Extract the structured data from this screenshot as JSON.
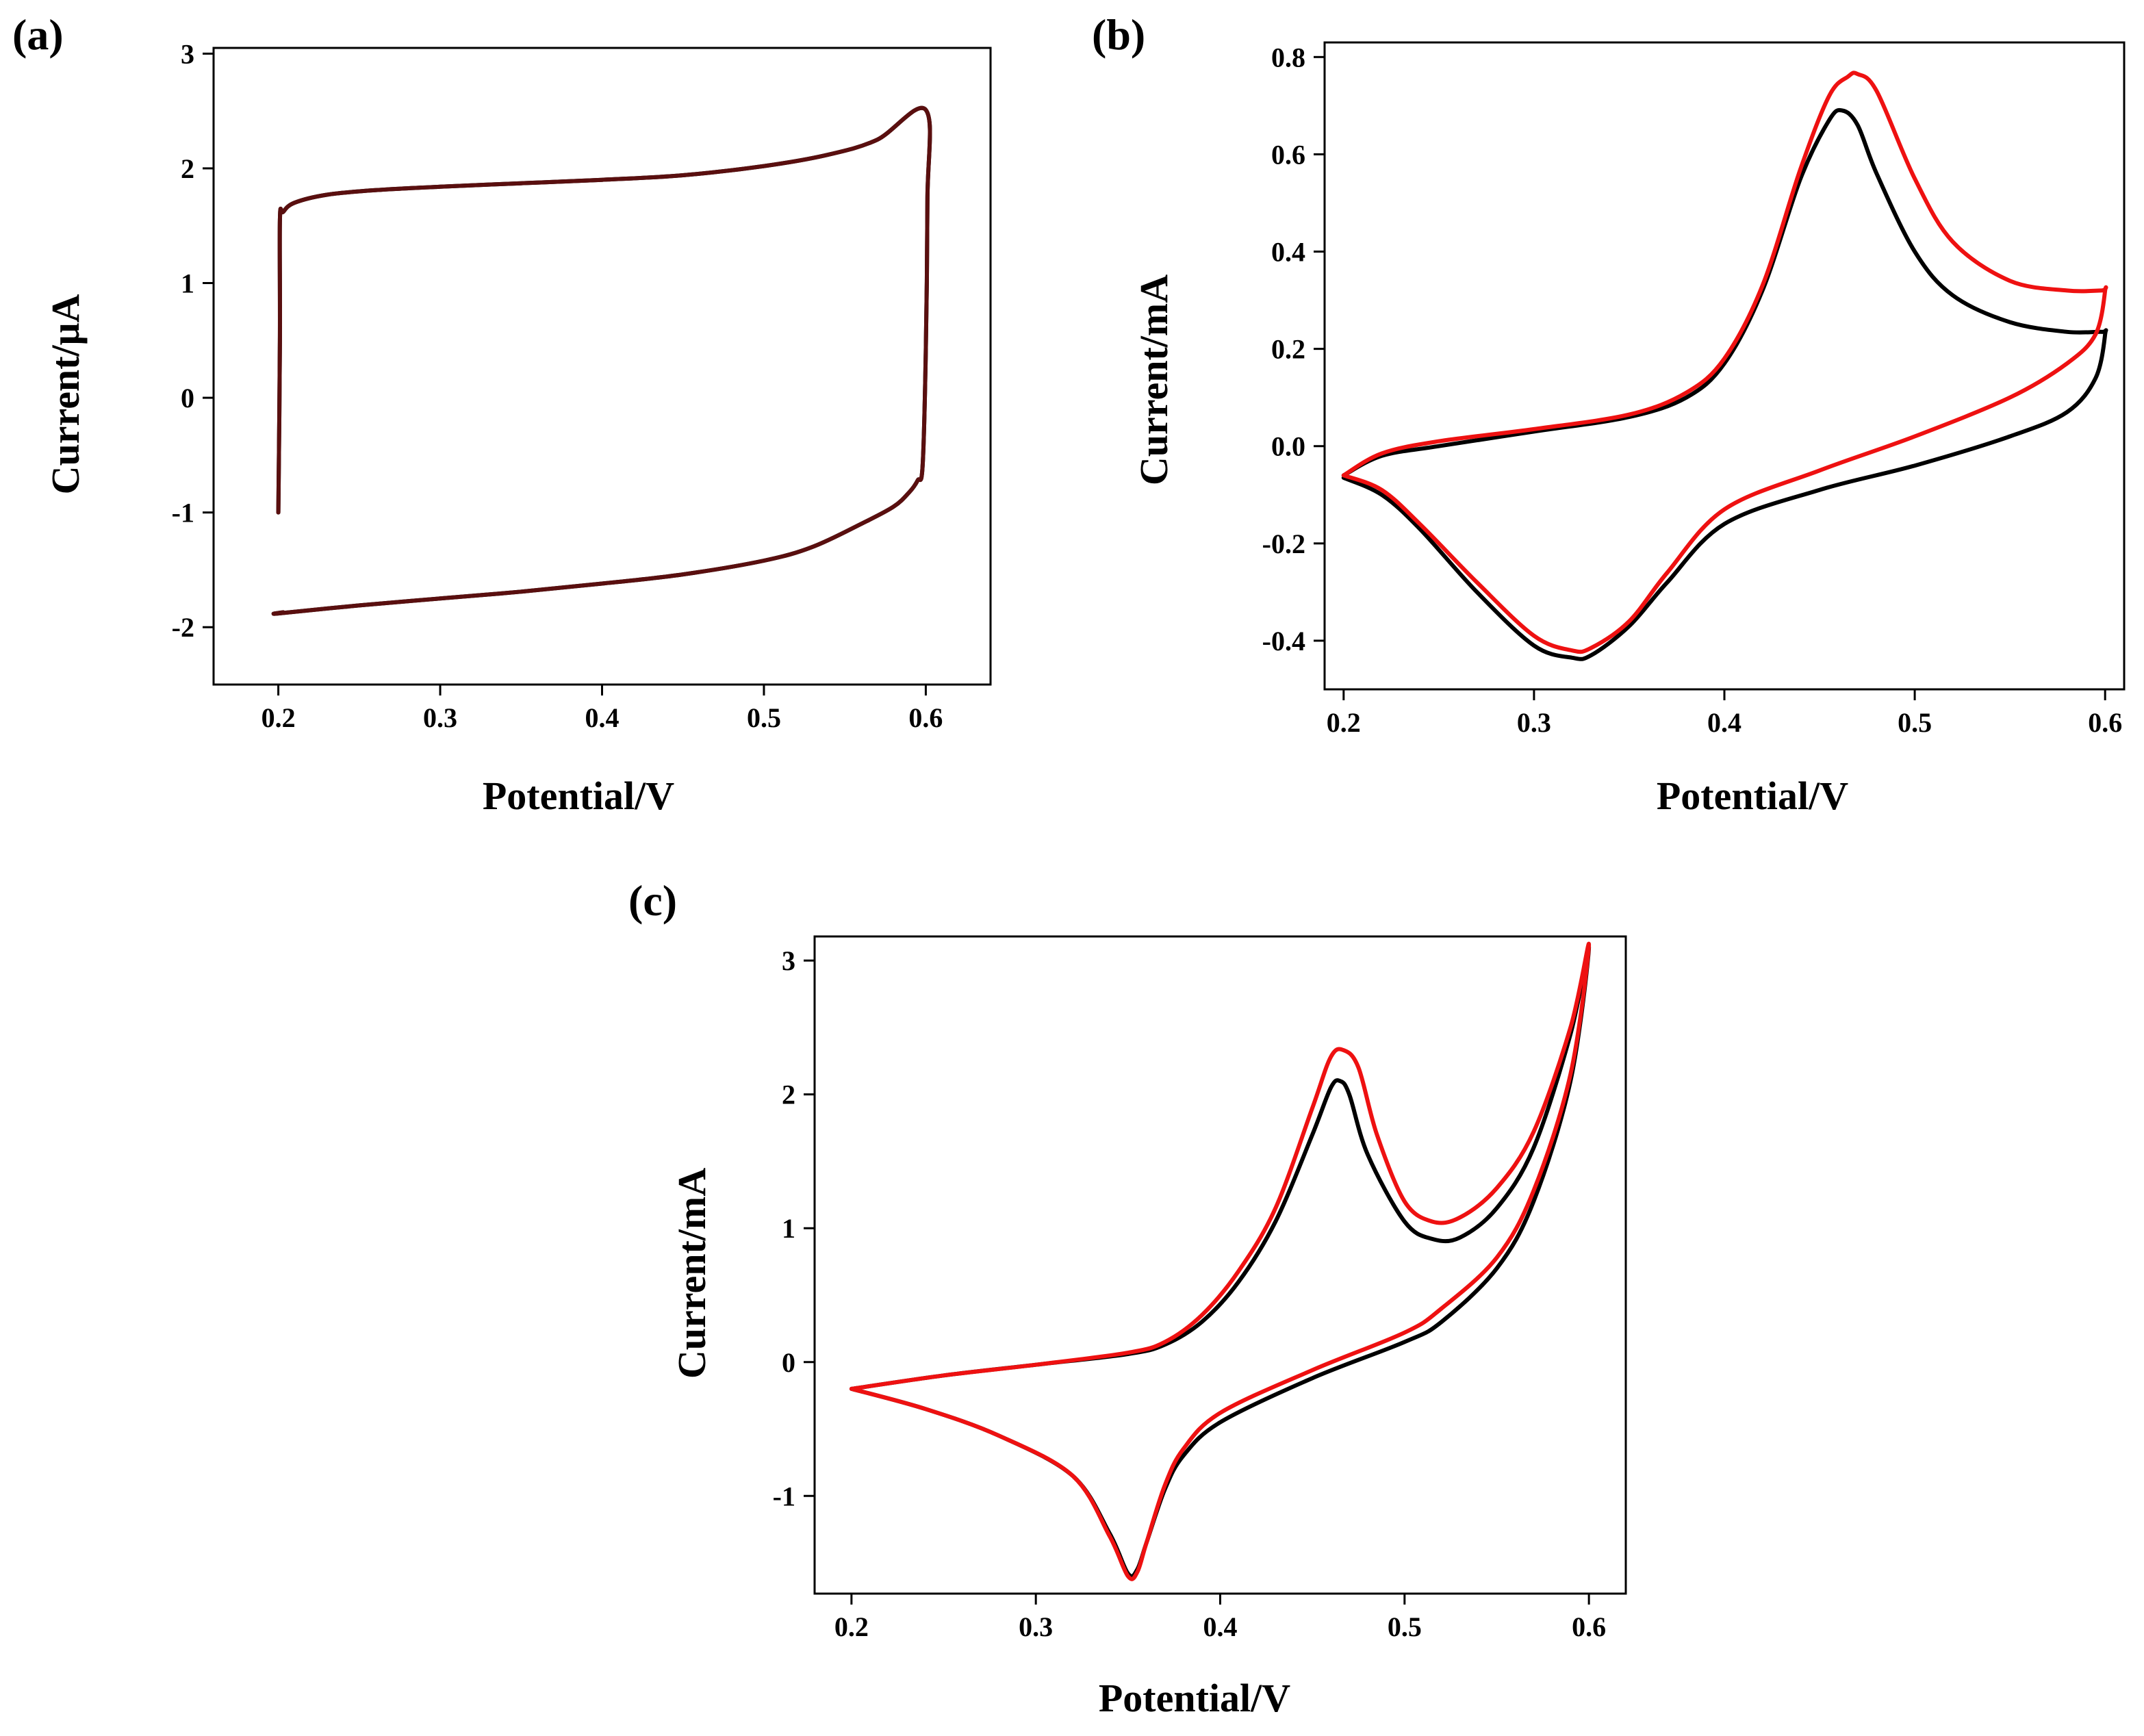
{
  "colors": {
    "black": "#000000",
    "red": "#ee1111",
    "dark_red": "#5a0f0f"
  },
  "chart_data": [
    {
      "id": "a",
      "panel_label": "(a)",
      "type": "line",
      "xlabel": "Potential/V",
      "ylabel": "Current/μA",
      "xlim": [
        0.16,
        0.64
      ],
      "ylim": [
        -2.5,
        3.05
      ],
      "xticks": [
        0.2,
        0.3,
        0.4,
        0.5,
        0.6
      ],
      "xtick_labels": [
        "0.2",
        "0.3",
        "0.4",
        "0.5",
        "0.6"
      ],
      "yticks": [
        -2,
        -1,
        0,
        1,
        2,
        3
      ],
      "ytick_labels": [
        "-2",
        "-1",
        "0",
        "1",
        "2",
        "3"
      ],
      "series": [
        {
          "name": "black",
          "color": "#000000",
          "x": [
            0.2,
            0.201,
            0.201,
            0.203,
            0.21,
            0.23,
            0.26,
            0.3,
            0.35,
            0.4,
            0.45,
            0.5,
            0.54,
            0.57,
            0.6,
            0.601,
            0.6,
            0.598,
            0.595,
            0.59,
            0.58,
            0.56,
            0.53,
            0.5,
            0.45,
            0.4,
            0.35,
            0.3,
            0.25,
            0.2,
            0.203
          ],
          "y": [
            -1.0,
            0.5,
            1.55,
            1.62,
            1.7,
            1.77,
            1.81,
            1.84,
            1.87,
            1.9,
            1.94,
            2.02,
            2.12,
            2.25,
            2.51,
            1.72,
            0.4,
            -0.6,
            -0.72,
            -0.82,
            -0.95,
            -1.1,
            -1.3,
            -1.42,
            -1.54,
            -1.62,
            -1.69,
            -1.75,
            -1.81,
            -1.88,
            -1.87
          ]
        },
        {
          "name": "red",
          "color": "#5a0f0f",
          "x": [
            0.2,
            0.201,
            0.201,
            0.203,
            0.21,
            0.23,
            0.26,
            0.3,
            0.35,
            0.4,
            0.45,
            0.5,
            0.54,
            0.57,
            0.6,
            0.601,
            0.6,
            0.598,
            0.595,
            0.59,
            0.58,
            0.56,
            0.53,
            0.5,
            0.45,
            0.4,
            0.35,
            0.3,
            0.25,
            0.2,
            0.203
          ],
          "y": [
            -1.0,
            0.5,
            1.55,
            1.62,
            1.7,
            1.77,
            1.81,
            1.84,
            1.87,
            1.9,
            1.94,
            2.02,
            2.12,
            2.25,
            2.51,
            1.72,
            0.4,
            -0.6,
            -0.72,
            -0.82,
            -0.95,
            -1.1,
            -1.3,
            -1.42,
            -1.54,
            -1.62,
            -1.69,
            -1.75,
            -1.81,
            -1.88,
            -1.87
          ]
        }
      ]
    },
    {
      "id": "b",
      "panel_label": "(b)",
      "type": "line",
      "xlabel": "Potential/V",
      "ylabel": "Current/mA",
      "xlim": [
        0.19,
        0.61
      ],
      "ylim": [
        -0.5,
        0.83
      ],
      "xticks": [
        0.2,
        0.3,
        0.4,
        0.5,
        0.6
      ],
      "xtick_labels": [
        "0.2",
        "0.3",
        "0.4",
        "0.5",
        "0.6"
      ],
      "yticks": [
        -0.4,
        -0.2,
        0.0,
        0.2,
        0.4,
        0.6,
        0.8
      ],
      "ytick_labels": [
        "-0.4",
        "-0.2",
        "0.0",
        "0.2",
        "0.4",
        "0.6",
        "0.8"
      ],
      "series": [
        {
          "name": "black",
          "color": "#000000",
          "x": [
            0.2,
            0.22,
            0.25,
            0.3,
            0.35,
            0.38,
            0.4,
            0.42,
            0.44,
            0.455,
            0.462,
            0.47,
            0.48,
            0.5,
            0.52,
            0.55,
            0.58,
            0.598,
            0.6,
            0.595,
            0.58,
            0.55,
            0.5,
            0.45,
            0.4,
            0.37,
            0.35,
            0.33,
            0.32,
            0.3,
            0.27,
            0.24,
            0.22,
            0.2
          ],
          "y": [
            -0.06,
            -0.02,
            0.0,
            0.03,
            0.06,
            0.1,
            0.17,
            0.32,
            0.55,
            0.67,
            0.69,
            0.66,
            0.56,
            0.4,
            0.31,
            0.255,
            0.235,
            0.235,
            0.23,
            0.14,
            0.07,
            0.02,
            -0.04,
            -0.09,
            -0.16,
            -0.28,
            -0.37,
            -0.43,
            -0.435,
            -0.41,
            -0.3,
            -0.17,
            -0.1,
            -0.065
          ]
        },
        {
          "name": "red",
          "color": "#ee1111",
          "x": [
            0.2,
            0.22,
            0.25,
            0.3,
            0.35,
            0.38,
            0.4,
            0.42,
            0.44,
            0.455,
            0.465,
            0.47,
            0.48,
            0.5,
            0.52,
            0.55,
            0.58,
            0.598,
            0.6,
            0.595,
            0.58,
            0.55,
            0.5,
            0.45,
            0.4,
            0.37,
            0.35,
            0.33,
            0.32,
            0.3,
            0.27,
            0.24,
            0.22,
            0.2
          ],
          "y": [
            -0.06,
            -0.015,
            0.01,
            0.035,
            0.065,
            0.11,
            0.18,
            0.33,
            0.57,
            0.72,
            0.76,
            0.765,
            0.73,
            0.55,
            0.42,
            0.34,
            0.32,
            0.32,
            0.32,
            0.23,
            0.17,
            0.1,
            0.02,
            -0.05,
            -0.13,
            -0.26,
            -0.36,
            -0.415,
            -0.42,
            -0.39,
            -0.28,
            -0.16,
            -0.09,
            -0.06
          ]
        }
      ]
    },
    {
      "id": "c",
      "panel_label": "(c)",
      "type": "line",
      "xlabel": "Potential/V",
      "ylabel": "Current/mA",
      "xlim": [
        0.18,
        0.62
      ],
      "ylim": [
        -1.73,
        3.18
      ],
      "xticks": [
        0.2,
        0.3,
        0.4,
        0.5,
        0.6
      ],
      "xtick_labels": [
        "0.2",
        "0.3",
        "0.4",
        "0.5",
        "0.6"
      ],
      "yticks": [
        -1,
        0,
        1,
        2,
        3
      ],
      "ytick_labels": [
        "-1",
        "0",
        "1",
        "2",
        "3"
      ],
      "series": [
        {
          "name": "black",
          "color": "#000000",
          "x": [
            0.2,
            0.25,
            0.3,
            0.35,
            0.37,
            0.39,
            0.41,
            0.43,
            0.45,
            0.46,
            0.465,
            0.47,
            0.48,
            0.5,
            0.515,
            0.53,
            0.55,
            0.57,
            0.59,
            0.6,
            0.59,
            0.57,
            0.55,
            0.52,
            0.5,
            0.45,
            0.4,
            0.38,
            0.37,
            0.36,
            0.355,
            0.35,
            0.34,
            0.32,
            0.28,
            0.24,
            0.2
          ],
          "y": [
            -0.2,
            -0.1,
            -0.02,
            0.06,
            0.13,
            0.3,
            0.6,
            1.05,
            1.7,
            2.05,
            2.1,
            2.0,
            1.55,
            1.05,
            0.92,
            0.93,
            1.15,
            1.6,
            2.45,
            3.1,
            2.1,
            1.2,
            0.7,
            0.3,
            0.15,
            -0.12,
            -0.45,
            -0.7,
            -0.95,
            -1.35,
            -1.55,
            -1.58,
            -1.28,
            -0.85,
            -0.55,
            -0.35,
            -0.2
          ]
        },
        {
          "name": "red",
          "color": "#ee1111",
          "x": [
            0.2,
            0.25,
            0.3,
            0.35,
            0.37,
            0.39,
            0.41,
            0.43,
            0.45,
            0.46,
            0.467,
            0.475,
            0.485,
            0.5,
            0.515,
            0.53,
            0.55,
            0.57,
            0.59,
            0.6,
            0.59,
            0.57,
            0.55,
            0.52,
            0.5,
            0.45,
            0.4,
            0.38,
            0.37,
            0.36,
            0.355,
            0.35,
            0.34,
            0.32,
            0.28,
            0.24,
            0.2
          ],
          "y": [
            -0.2,
            -0.1,
            -0.02,
            0.07,
            0.15,
            0.35,
            0.68,
            1.15,
            1.9,
            2.28,
            2.33,
            2.2,
            1.7,
            1.2,
            1.05,
            1.08,
            1.3,
            1.72,
            2.5,
            3.12,
            2.15,
            1.28,
            0.78,
            0.4,
            0.22,
            -0.06,
            -0.38,
            -0.65,
            -0.92,
            -1.35,
            -1.57,
            -1.6,
            -1.3,
            -0.85,
            -0.55,
            -0.35,
            -0.2
          ]
        }
      ]
    }
  ]
}
